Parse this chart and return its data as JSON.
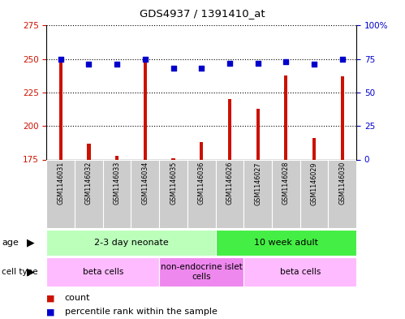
{
  "title": "GDS4937 / 1391410_at",
  "samples": [
    "GSM1146031",
    "GSM1146032",
    "GSM1146033",
    "GSM1146034",
    "GSM1146035",
    "GSM1146036",
    "GSM1146026",
    "GSM1146027",
    "GSM1146028",
    "GSM1146029",
    "GSM1146030"
  ],
  "counts": [
    250,
    187,
    178,
    250,
    176,
    188,
    220,
    213,
    238,
    191,
    237
  ],
  "percentiles": [
    75,
    71,
    71,
    75,
    68,
    68,
    72,
    72,
    73,
    71,
    75
  ],
  "ylim_left": [
    175,
    275
  ],
  "ylim_right": [
    0,
    100
  ],
  "yticks_left": [
    175,
    200,
    225,
    250,
    275
  ],
  "yticks_right": [
    0,
    25,
    50,
    75,
    100
  ],
  "ytick_labels_left": [
    "175",
    "200",
    "225",
    "250",
    "275"
  ],
  "ytick_labels_right": [
    "0",
    "25",
    "50",
    "75",
    "100%"
  ],
  "bar_color": "#cc1100",
  "dot_color": "#0000cc",
  "grid_color": "#000000",
  "age_groups": [
    {
      "label": "2-3 day neonate",
      "start": 0,
      "end": 6,
      "color": "#bbffbb"
    },
    {
      "label": "10 week adult",
      "start": 6,
      "end": 11,
      "color": "#44ee44"
    }
  ],
  "cell_groups": [
    {
      "label": "beta cells",
      "start": 0,
      "end": 4,
      "color": "#ffbbff"
    },
    {
      "label": "non-endocrine islet\ncells",
      "start": 4,
      "end": 7,
      "color": "#ee88ee"
    },
    {
      "label": "beta cells",
      "start": 7,
      "end": 11,
      "color": "#ffbbff"
    }
  ],
  "tick_bg_color": "#cccccc",
  "background_color": "#ffffff"
}
